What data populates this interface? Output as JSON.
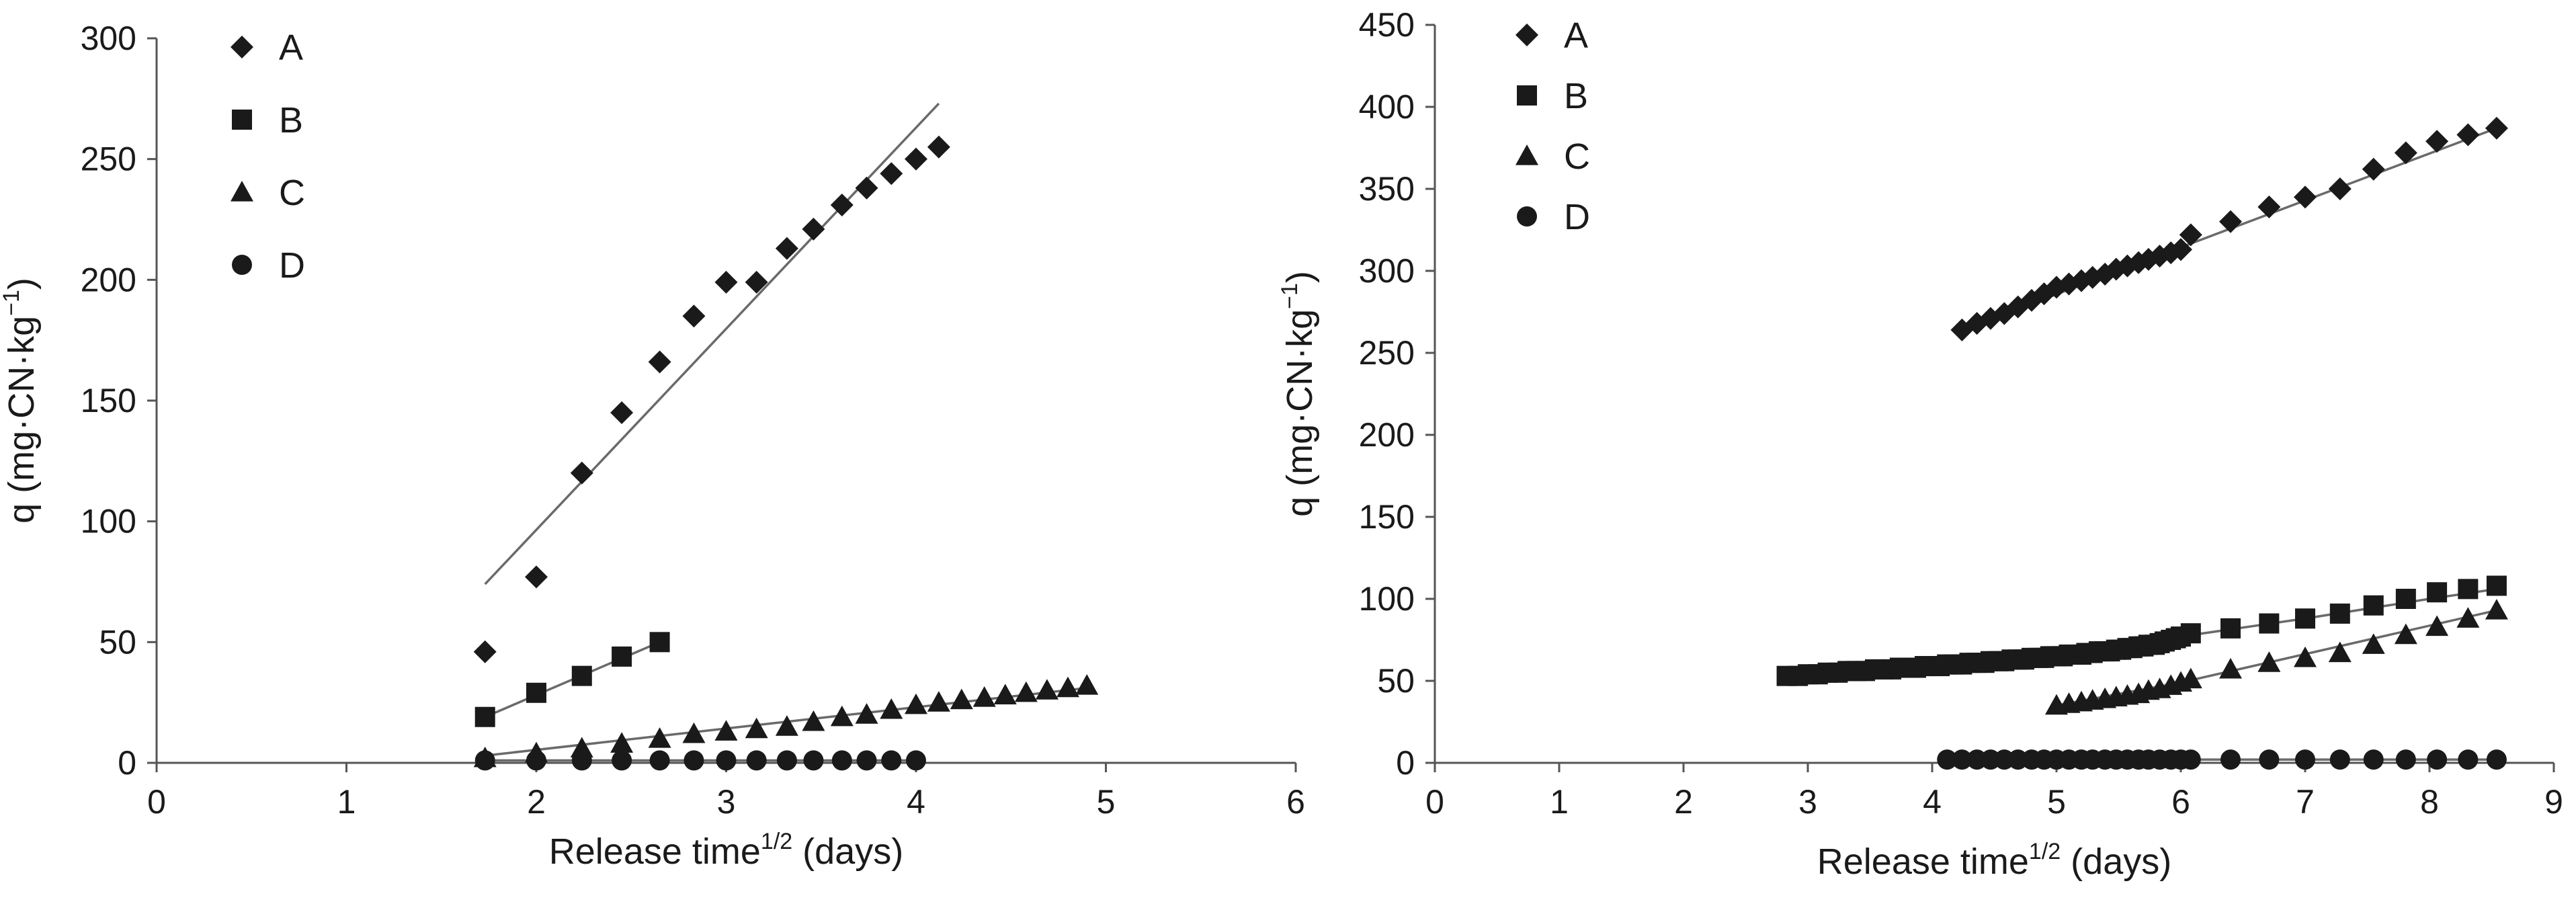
{
  "chart_data": [
    {
      "type": "scatter",
      "title": "",
      "xlabel": "Release time",
      "xlabel_sup": "1/2",
      "xlabel_suffix": " (days)",
      "ylabel": "q (mg·CN·kg",
      "ylabel_sup": "−1",
      "ylabel_suffix": ")",
      "xlim": [
        0,
        6
      ],
      "ylim": [
        0,
        300
      ],
      "xticks": [
        0,
        1,
        2,
        3,
        4,
        5,
        6
      ],
      "yticks": [
        0,
        50,
        100,
        150,
        200,
        250,
        300
      ],
      "grid": false,
      "legend_position": "top-left",
      "series": [
        {
          "name": "A",
          "marker": "diamond",
          "x": [
            1.73,
            2.0,
            2.24,
            2.45,
            2.65,
            2.83,
            3.0,
            3.16,
            3.32,
            3.46,
            3.61,
            3.74,
            3.87,
            4.0,
            4.12
          ],
          "y": [
            46,
            77,
            120,
            145,
            166,
            185,
            199,
            199,
            213,
            221,
            231,
            238,
            244,
            250,
            255
          ],
          "fit": [
            [
              1.73,
              74
            ],
            [
              4.12,
              273
            ]
          ]
        },
        {
          "name": "B",
          "marker": "square",
          "x": [
            1.73,
            2.0,
            2.24,
            2.45,
            2.65
          ],
          "y": [
            19,
            29,
            36,
            44,
            50
          ],
          "fit": [
            [
              1.73,
              19
            ],
            [
              2.65,
              50
            ]
          ]
        },
        {
          "name": "C",
          "marker": "triangle",
          "x": [
            1.73,
            2.0,
            2.24,
            2.45,
            2.65,
            2.83,
            3.0,
            3.16,
            3.32,
            3.46,
            3.61,
            3.74,
            3.87,
            4.0,
            4.12,
            4.24,
            4.36,
            4.47,
            4.58,
            4.69,
            4.8,
            4.9
          ],
          "y": [
            2,
            4,
            6,
            8,
            10,
            12,
            13,
            14,
            15,
            17,
            19,
            20,
            22,
            24,
            25,
            26,
            27,
            28,
            29,
            30,
            31,
            32
          ],
          "fit": [
            [
              1.73,
              3
            ],
            [
              4.9,
              31
            ]
          ]
        },
        {
          "name": "D",
          "marker": "circle",
          "x": [
            1.73,
            2.0,
            2.24,
            2.45,
            2.65,
            2.83,
            3.0,
            3.16,
            3.32,
            3.46,
            3.61,
            3.74,
            3.87,
            4.0
          ],
          "y": [
            1,
            1,
            1,
            1,
            1,
            1,
            1,
            1,
            1,
            1,
            1,
            1,
            1,
            1
          ],
          "fit": [
            [
              1.73,
              1
            ],
            [
              4.0,
              1
            ]
          ]
        }
      ]
    },
    {
      "type": "scatter",
      "title": "",
      "xlabel": "Release time",
      "xlabel_sup": "1/2",
      "xlabel_suffix": " (days)",
      "ylabel": "q (mg·CN·kg",
      "ylabel_sup": "−1",
      "ylabel_suffix": ")",
      "xlim": [
        0,
        9
      ],
      "ylim": [
        0,
        450
      ],
      "xticks": [
        0,
        1,
        2,
        3,
        4,
        5,
        6,
        7,
        8,
        9
      ],
      "yticks": [
        0,
        50,
        100,
        150,
        200,
        250,
        300,
        350,
        400,
        450
      ],
      "grid": false,
      "legend_position": "top-left",
      "series": [
        {
          "name": "A",
          "marker": "diamond",
          "x": [
            4.24,
            4.36,
            4.47,
            4.58,
            4.69,
            4.8,
            4.9,
            5.0,
            5.1,
            5.2,
            5.29,
            5.39,
            5.48,
            5.57,
            5.66,
            5.74,
            5.83,
            5.92,
            6.0,
            6.08,
            6.4,
            6.71,
            7.0,
            7.28,
            7.55,
            7.81,
            8.06,
            8.31,
            8.54
          ],
          "y": [
            264,
            268,
            271,
            274,
            278,
            282,
            286,
            290,
            292,
            294,
            296,
            298,
            301,
            303,
            305,
            307,
            309,
            311,
            313,
            322,
            330,
            339,
            345,
            350,
            362,
            372,
            379,
            383,
            387
          ],
          "fit": [
            [
              4.24,
              264
            ],
            [
              8.54,
              387
            ]
          ]
        },
        {
          "name": "B",
          "marker": "square",
          "x": [
            2.83,
            2.92,
            3.0,
            3.08,
            3.16,
            3.24,
            3.32,
            3.39,
            3.46,
            3.54,
            3.61,
            3.67,
            3.74,
            3.81,
            3.87,
            3.94,
            4.0,
            4.06,
            4.12,
            4.18,
            4.24,
            4.3,
            4.36,
            4.42,
            4.47,
            4.53,
            4.58,
            4.64,
            4.69,
            4.74,
            4.8,
            4.85,
            4.9,
            4.95,
            5.0,
            5.05,
            5.1,
            5.15,
            5.2,
            5.24,
            5.29,
            5.34,
            5.39,
            5.43,
            5.48,
            5.52,
            5.57,
            5.61,
            5.66,
            5.7,
            5.74,
            5.79,
            5.83,
            5.87,
            5.92,
            5.96,
            6.0,
            6.08,
            6.4,
            6.71,
            7.0,
            7.28,
            7.55,
            7.81,
            8.06,
            8.31,
            8.54
          ],
          "y": [
            53,
            53,
            54,
            54,
            55,
            55,
            56,
            56,
            56,
            57,
            57,
            57,
            58,
            58,
            58,
            59,
            59,
            59,
            60,
            60,
            60,
            61,
            61,
            61,
            62,
            62,
            62,
            63,
            63,
            63,
            64,
            64,
            64,
            65,
            65,
            65,
            66,
            66,
            66,
            67,
            67,
            68,
            68,
            68,
            69,
            69,
            70,
            70,
            71,
            71,
            72,
            72,
            73,
            74,
            75,
            76,
            77,
            79,
            82,
            85,
            88,
            91,
            96,
            100,
            104,
            106,
            108
          ],
          "fit": [
            [
              2.83,
              52
            ],
            [
              4.0,
              57
            ],
            [
              5.0,
              64
            ],
            [
              6.0,
              77
            ],
            [
              7.0,
              88
            ],
            [
              8.0,
              100
            ],
            [
              8.54,
              106
            ]
          ]
        },
        {
          "name": "C",
          "marker": "triangle",
          "x": [
            5.0,
            5.1,
            5.2,
            5.29,
            5.39,
            5.48,
            5.57,
            5.66,
            5.74,
            5.83,
            5.92,
            6.0,
            6.08,
            6.4,
            6.71,
            7.0,
            7.28,
            7.55,
            7.81,
            8.06,
            8.31,
            8.54
          ],
          "y": [
            35,
            36,
            37,
            38,
            39,
            40,
            41,
            42,
            44,
            45,
            47,
            49,
            51,
            57,
            61,
            64,
            67,
            72,
            78,
            83,
            88,
            93
          ],
          "fit": [
            [
              5.0,
              35
            ],
            [
              6.0,
              49
            ],
            [
              8.54,
              93
            ]
          ]
        },
        {
          "name": "D",
          "marker": "circle",
          "x": [
            4.12,
            4.24,
            4.36,
            4.47,
            4.58,
            4.69,
            4.8,
            4.9,
            5.0,
            5.1,
            5.2,
            5.29,
            5.39,
            5.48,
            5.57,
            5.66,
            5.74,
            5.83,
            5.92,
            6.0,
            6.08,
            6.4,
            6.71,
            7.0,
            7.28,
            7.55,
            7.81,
            8.06,
            8.31,
            8.54
          ],
          "y": [
            2,
            2,
            2,
            2,
            2,
            2,
            2,
            2,
            2,
            2,
            2,
            2,
            2,
            2,
            2,
            2,
            2,
            2,
            2,
            2,
            2,
            2,
            2,
            2,
            2,
            2,
            2,
            2,
            2,
            2
          ],
          "fit": [
            [
              4.12,
              2
            ],
            [
              8.54,
              2
            ]
          ]
        }
      ]
    }
  ]
}
